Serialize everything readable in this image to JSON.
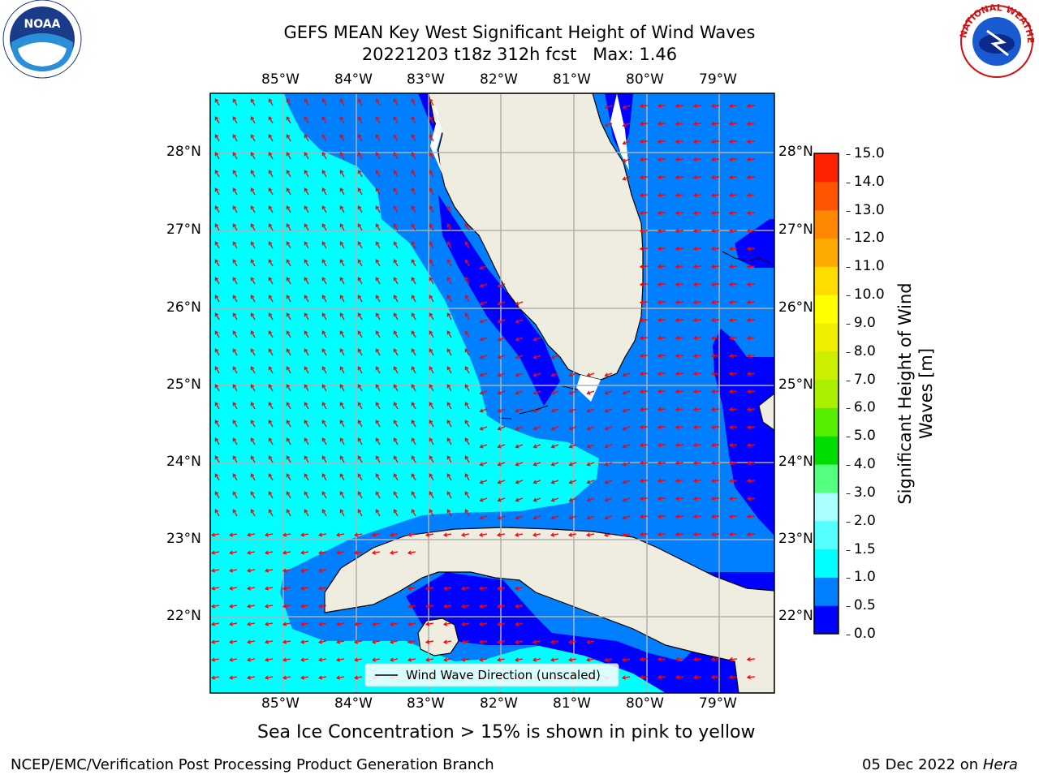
{
  "header": {
    "title_line1": "GEFS MEAN Key West Significant Height of Wind Waves",
    "title_line2": "20221203 t18z 312h fcst   Max: 1.46"
  },
  "logos": {
    "left": "NOAA",
    "right": "NATIONAL WEATHER SERVICE"
  },
  "map": {
    "lon_labels": [
      "85°W",
      "84°W",
      "83°W",
      "82°W",
      "81°W",
      "80°W",
      "79°W"
    ],
    "lat_labels": [
      "28°N",
      "27°N",
      "26°N",
      "25°N",
      "24°N",
      "23°N",
      "22°N"
    ],
    "legend": "Wind Wave Direction (unscaled)",
    "colors": {
      "ocean_low": "#0000ff",
      "ocean_mid": "#0080ff",
      "ocean_high": "#00ffff",
      "land": "#efeddf",
      "arrow": "#ff0000"
    }
  },
  "colorbar": {
    "label_line1": "Significant Height of Wind",
    "label_line2": "Waves [m]",
    "ticks": [
      "15.0",
      "14.0",
      "13.0",
      "12.0",
      "11.0",
      "10.0",
      "9.0",
      "8.0",
      "7.0",
      "6.0",
      "5.0",
      "4.0",
      "3.0",
      "2.0",
      "1.5",
      "1.0",
      "0.5",
      "0.0"
    ],
    "colors": [
      "#0000ff",
      "#0080ff",
      "#00ffff",
      "#55ffff",
      "#aaffff",
      "#55ff7f",
      "#00dd00",
      "#55ee00",
      "#aaee00",
      "#ccee00",
      "#eeee00",
      "#ffff00",
      "#ffdd00",
      "#ffaa00",
      "#ff8800",
      "#ff5500",
      "#ff2200"
    ]
  },
  "subtitle": "Sea Ice Concentration > 15% is shown in pink to yellow",
  "footer": {
    "left": "NCEP/EMC/Verification Post Processing Product Generation Branch",
    "right_date": "05 Dec 2022 on ",
    "right_host": "Hera"
  }
}
